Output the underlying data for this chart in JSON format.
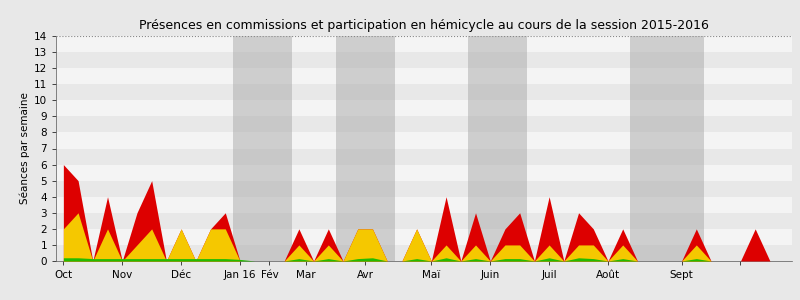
{
  "title": "Présences en commissions et participation en hémicycle au cours de la session 2015-2016",
  "ylabel": "Séances par semaine",
  "ylim": [
    0,
    14
  ],
  "yticks": [
    0,
    1,
    2,
    3,
    4,
    5,
    6,
    7,
    8,
    9,
    10,
    11,
    12,
    13,
    14
  ],
  "bg_bands": [
    {
      "y": 0,
      "color": "#e8e8e8"
    },
    {
      "y": 1,
      "color": "#f4f4f4"
    },
    {
      "y": 2,
      "color": "#e8e8e8"
    },
    {
      "y": 3,
      "color": "#f4f4f4"
    },
    {
      "y": 4,
      "color": "#e8e8e8"
    },
    {
      "y": 5,
      "color": "#f4f4f4"
    },
    {
      "y": 6,
      "color": "#e8e8e8"
    },
    {
      "y": 7,
      "color": "#f4f4f4"
    },
    {
      "y": 8,
      "color": "#e8e8e8"
    },
    {
      "y": 9,
      "color": "#f4f4f4"
    },
    {
      "y": 10,
      "color": "#e8e8e8"
    },
    {
      "y": 11,
      "color": "#f4f4f4"
    },
    {
      "y": 12,
      "color": "#e8e8e8"
    },
    {
      "y": 13,
      "color": "#f4f4f4"
    }
  ],
  "gray_bands": [
    {
      "xstart": 11.5,
      "xend": 15.5
    },
    {
      "xstart": 18.5,
      "xend": 22.5
    },
    {
      "xstart": 27.5,
      "xend": 31.5
    },
    {
      "xstart": 38.5,
      "xend": 43.5
    }
  ],
  "red_data": [
    6,
    5,
    0,
    4,
    0,
    3,
    5,
    0,
    2,
    0,
    2,
    3,
    0,
    0,
    0,
    0,
    2,
    0,
    2,
    0,
    2,
    2,
    0,
    0,
    2,
    0,
    4,
    0,
    3,
    0,
    2,
    3,
    0,
    4,
    0,
    3,
    2,
    0,
    2,
    0,
    0,
    0,
    0,
    2,
    0,
    0,
    0,
    2,
    0,
    0
  ],
  "yellow_data": [
    2,
    3,
    0,
    2,
    0,
    1,
    2,
    0,
    2,
    0,
    2,
    2,
    0,
    0,
    0,
    0,
    1,
    0,
    1,
    0,
    2,
    2,
    0,
    0,
    2,
    0,
    1,
    0,
    1,
    0,
    1,
    1,
    0,
    1,
    0,
    1,
    1,
    0,
    1,
    0,
    0,
    0,
    0,
    1,
    0,
    0,
    0,
    0,
    0,
    0
  ],
  "green_data": [
    0.2,
    0.2,
    0.15,
    0.15,
    0.15,
    0.15,
    0.15,
    0.15,
    0.15,
    0.15,
    0.15,
    0.15,
    0.1,
    0,
    0,
    0,
    0.15,
    0,
    0.15,
    0,
    0.15,
    0.2,
    0,
    0,
    0.15,
    0,
    0.2,
    0,
    0.15,
    0,
    0.15,
    0.15,
    0,
    0.2,
    0,
    0.2,
    0.15,
    0,
    0.15,
    0,
    0,
    0,
    0,
    0.15,
    0,
    0,
    0,
    0,
    0,
    0
  ],
  "n_weeks": 50,
  "fig_facecolor": "#e8e8e8",
  "gray_band_color": "#aaaaaa",
  "gray_band_alpha": 0.5,
  "red_color": "#dd0000",
  "yellow_color": "#f5c800",
  "green_color": "#22bb00",
  "title_fontsize": 9,
  "axis_fontsize": 7.5,
  "ylabel_fontsize": 7.5
}
